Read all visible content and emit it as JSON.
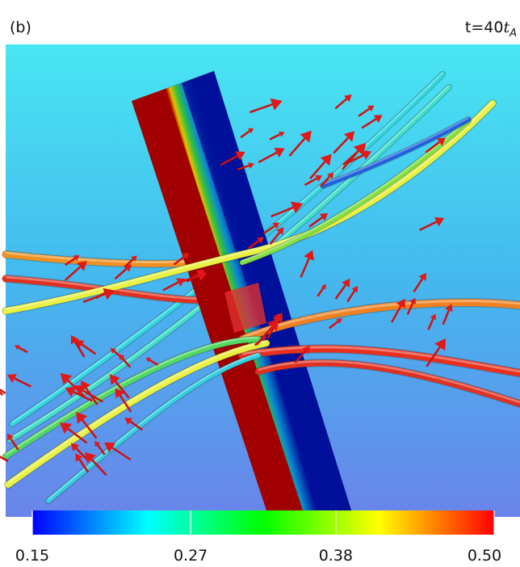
{
  "panel_label": "(b)",
  "time_label": {
    "prefix": "t=40",
    "symbol": "t",
    "subscript": "A"
  },
  "colorbar": {
    "range": [
      0.15,
      0.5
    ],
    "ticks": [
      0.15,
      0.27,
      0.38,
      {
        "value": 0.5,
        "label": "0.50"
      }
    ],
    "colors": [
      "#0000ff",
      "#00ffff",
      "#00ff00",
      "#ffff00",
      "#ff0000"
    ]
  }
}
